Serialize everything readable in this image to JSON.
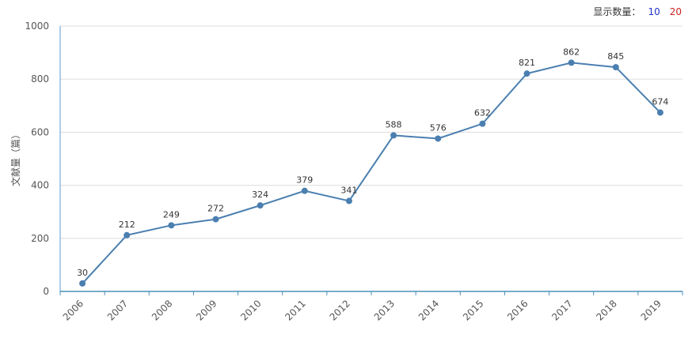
{
  "controls": {
    "display_count_label": "显示数量：",
    "options": [
      {
        "label": "10",
        "color": "#2233cc"
      },
      {
        "label": "20",
        "color": "#cc2222"
      }
    ]
  },
  "chart_data": {
    "type": "line",
    "title": "",
    "xlabel": "",
    "ylabel": "文献量（篇）",
    "ylim": [
      0,
      1000
    ],
    "yticks": [
      "0",
      "200",
      "400",
      "600",
      "800",
      "1000"
    ],
    "grid": true,
    "color": "#4a7fb0",
    "categories": [
      "2006",
      "2007",
      "2008",
      "2009",
      "2010",
      "2011",
      "2012",
      "2013",
      "2014",
      "2015",
      "2016",
      "2017",
      "2018",
      "2019"
    ],
    "values": [
      30,
      212,
      249,
      272,
      324,
      379,
      341,
      588,
      576,
      632,
      821,
      862,
      845,
      674
    ]
  }
}
